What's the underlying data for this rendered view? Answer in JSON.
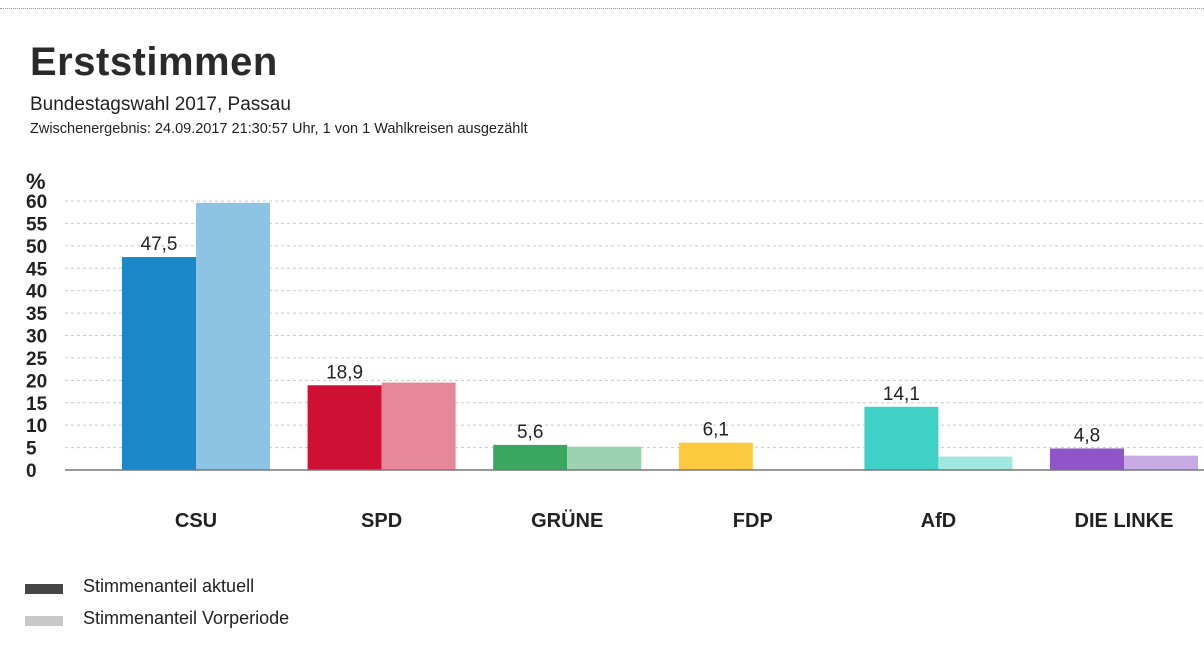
{
  "header": {
    "title": "Erststimmen",
    "subtitle": "Bundestagswahl 2017, Passau",
    "status": "Zwischenergebnis: 24.09.2017 21:30:57 Uhr, 1 von 1 Wahlkreisen ausgezählt"
  },
  "chart_data": {
    "type": "bar",
    "ylabel": "%",
    "ylim": [
      0,
      60
    ],
    "yticks": [
      0,
      5,
      10,
      15,
      20,
      25,
      30,
      35,
      40,
      45,
      50,
      55,
      60
    ],
    "grid": true,
    "categories": [
      "CSU",
      "SPD",
      "GRÜNE",
      "FDP",
      "AfD",
      "DIE LINKE"
    ],
    "series": [
      {
        "name": "Stimmenanteil aktuell",
        "values": [
          47.5,
          18.9,
          5.6,
          6.1,
          14.1,
          4.8
        ],
        "labels": [
          "47,5",
          "18,9",
          "5,6",
          "6,1",
          "14,1",
          "4,8"
        ],
        "colors": [
          "#1a88c8",
          "#cf1035",
          "#3aa660",
          "#fcca3e",
          "#3fd1c6",
          "#9055c8"
        ]
      },
      {
        "name": "Stimmenanteil Vorperiode",
        "values": [
          59.6,
          19.5,
          5.2,
          0,
          3.0,
          3.2
        ],
        "colors": [
          "#8dc4e3",
          "#e7879a",
          "#9cd2af",
          "#fde59e",
          "#9fe8e2",
          "#c7aae3"
        ]
      }
    ],
    "legend": {
      "placement": "bottom-left",
      "items": [
        {
          "label": "Stimmenanteil aktuell",
          "color": "#454545"
        },
        {
          "label": "Stimmenanteil Vorperiode",
          "color": "#c8c8c8"
        }
      ]
    }
  }
}
